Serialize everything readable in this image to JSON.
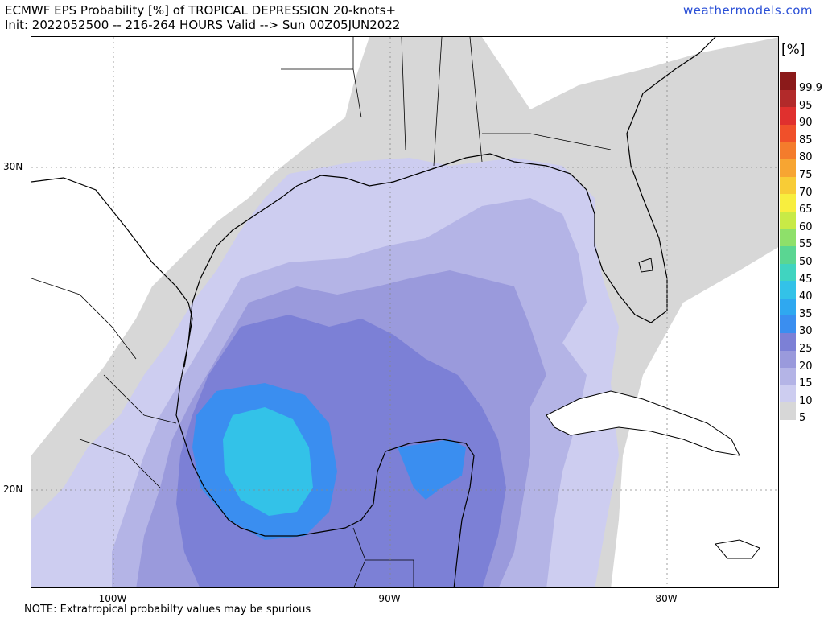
{
  "header": {
    "title_line1": "ECMWF EPS Probability [%] of TROPICAL DEPRESSION 20-knots+",
    "title_line2": "Init: 2022052500 -- 216-264 HOURS Valid --> Sun 00Z05JUN2022",
    "site": "weathermodels.com"
  },
  "axes": {
    "lat_labels": [
      "30N",
      "20N"
    ],
    "lon_labels": [
      "100W",
      "90W",
      "80W"
    ]
  },
  "legend": {
    "unit": "[%]",
    "labels": [
      "99.9",
      "95",
      "90",
      "85",
      "80",
      "75",
      "70",
      "65",
      "60",
      "55",
      "50",
      "45",
      "40",
      "35",
      "30",
      "25",
      "20",
      "15",
      "10",
      "5"
    ],
    "colors": [
      "#8b1a1a",
      "#b22a2a",
      "#e0302e",
      "#f0502a",
      "#f47c2c",
      "#f7a532",
      "#f8cc36",
      "#f8ee3e",
      "#c8ea46",
      "#8ee06a",
      "#5ad692",
      "#40d4c0",
      "#33c2e8",
      "#2fa8f0",
      "#3a8ef0",
      "#7c80d6",
      "#9a9adc",
      "#b4b4e6",
      "#cdcdf0",
      "#d7d7d7"
    ]
  },
  "footer": {
    "note": "NOTE: Extratropical probabilty values may be spurious"
  }
}
